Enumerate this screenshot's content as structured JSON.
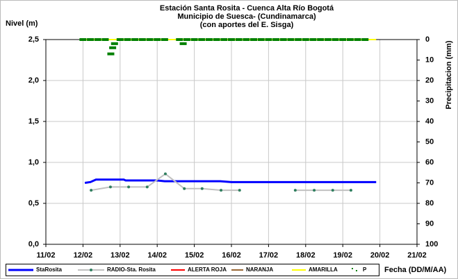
{
  "chart_data": {
    "type": "line",
    "title": [
      "Estación Santa Rosita - Cuenca Alta Río Bogotá",
      "Municipio de Suesca- (Cundinamarca)",
      "(con aportes del  E. Sisga)"
    ],
    "y_label": "Nivel (m)",
    "y2_label": "Precipitacion (mm)",
    "x_label": "Fecha (DD/M/AA)",
    "xlim": [
      11,
      21
    ],
    "xticks": [
      {
        "value": 11,
        "label": "11/02"
      },
      {
        "value": 12,
        "label": "12/02"
      },
      {
        "value": 13,
        "label": "13/02"
      },
      {
        "value": 14,
        "label": "14/02"
      },
      {
        "value": 15,
        "label": "15/02"
      },
      {
        "value": 16,
        "label": "16/02"
      },
      {
        "value": 17,
        "label": "17/02"
      },
      {
        "value": 18,
        "label": "18/02"
      },
      {
        "value": 19,
        "label": "19/02"
      },
      {
        "value": 20,
        "label": "20/02"
      },
      {
        "value": 21,
        "label": "21/02"
      }
    ],
    "ylim": [
      0,
      2.5
    ],
    "yticks": [
      {
        "value": 0,
        "label": "0,0"
      },
      {
        "value": 0.5,
        "label": "0,5"
      },
      {
        "value": 1,
        "label": "1,0"
      },
      {
        "value": 1.5,
        "label": "1,5"
      },
      {
        "value": 2,
        "label": "2,0"
      },
      {
        "value": 2.5,
        "label": "2,5"
      }
    ],
    "y2lim": [
      100,
      0
    ],
    "y2ticks": [
      0,
      10,
      20,
      30,
      40,
      50,
      60,
      70,
      80,
      90,
      100
    ],
    "grid": true,
    "legend": "bottom",
    "series": [
      {
        "name": "StaRosita",
        "color": "#0000ff",
        "mode": "line",
        "x": [
          12.05,
          12.2,
          12.35,
          13.1,
          13.15,
          14.0,
          14.2,
          14.5,
          15.7,
          16.0,
          19.9
        ],
        "values": [
          0.75,
          0.76,
          0.79,
          0.79,
          0.78,
          0.78,
          0.77,
          0.77,
          0.77,
          0.76,
          0.76
        ]
      },
      {
        "name": "RADIO-Sta. Rosita",
        "color": "#c0c0c0",
        "marker_color": "#2f7f5f",
        "mode": "line+markers",
        "x": [
          12.22,
          12.74,
          13.23,
          13.73,
          14.22,
          14.73,
          15.21,
          15.72,
          16.22,
          17.0,
          17.72,
          18.23,
          18.73,
          19.22
        ],
        "values": [
          0.66,
          0.7,
          0.7,
          0.7,
          0.86,
          0.68,
          0.68,
          0.66,
          0.66,
          null,
          0.66,
          0.66,
          0.66,
          0.66
        ]
      },
      {
        "name": "ALERTA ROJA",
        "color": "#ff0000",
        "mode": "line",
        "x": [
          12,
          19.9
        ],
        "values": [
          2.5,
          2.5
        ]
      },
      {
        "name": "NARANJA",
        "color": "#996633",
        "mode": "line",
        "x": [
          12,
          19.9
        ],
        "values": [
          2.5,
          2.5
        ]
      },
      {
        "name": "AMARILLA",
        "color": "#ffff00",
        "mode": "line",
        "x": [
          12,
          19.9
        ],
        "values": [
          2.5,
          2.5
        ]
      },
      {
        "name": "P",
        "color": "#008000",
        "mode": "markers",
        "axis": "y2",
        "x": [
          12.0,
          12.2,
          12.4,
          12.6,
          12.75,
          12.8,
          12.85,
          13.0,
          13.2,
          13.4,
          13.6,
          13.8,
          14.0,
          14.2,
          14.6,
          14.7,
          14.8,
          15.0,
          15.2,
          15.4,
          15.6,
          15.8,
          16.0,
          16.2,
          16.4,
          16.6,
          16.8,
          17.0,
          17.2,
          17.4,
          17.6,
          17.8,
          18.0,
          18.2,
          18.4,
          18.6,
          18.8,
          19.0,
          19.2,
          19.4,
          19.6
        ],
        "values": [
          0,
          0,
          0,
          0,
          7,
          4,
          2,
          0,
          0,
          0,
          0,
          0,
          0,
          0,
          0,
          2,
          0,
          0,
          0,
          0,
          0,
          0,
          0,
          0,
          0,
          0,
          0,
          0,
          0,
          0,
          0,
          0,
          0,
          0,
          0,
          0,
          0,
          0,
          0,
          0,
          0
        ]
      }
    ]
  }
}
